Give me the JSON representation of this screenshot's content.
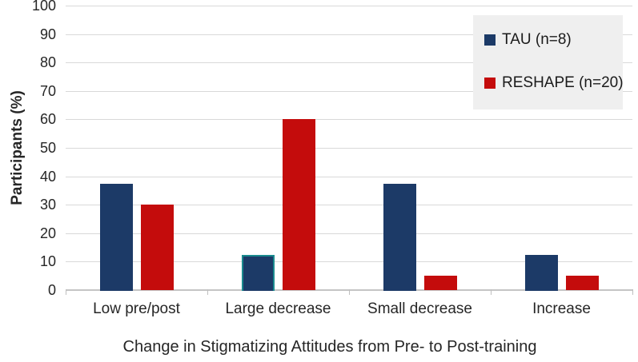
{
  "chart_data": {
    "type": "bar",
    "categories": [
      "Low pre/post",
      "Large decrease",
      "Small decrease",
      "Increase"
    ],
    "series": [
      {
        "name": "TAU (n=8)",
        "color": "#1C3A67",
        "values": [
          37.5,
          12.5,
          37.5,
          12.5
        ]
      },
      {
        "name": "RESHAPE (n=20)",
        "color": "#C40C0C",
        "values": [
          30,
          60,
          5,
          5
        ]
      }
    ],
    "xlabel": "Change in Stigmatizing Attitudes from Pre- to Post-training",
    "ylabel": "Participants (%)",
    "ylim": [
      0,
      100
    ],
    "yticks": [
      0,
      10,
      20,
      30,
      40,
      50,
      60,
      70,
      80,
      90,
      100
    ],
    "grid": true,
    "legend_position": "top-right",
    "legend_background": "#EFEFEF",
    "gridline_color": "#D9D9D9",
    "axis_line_color": "#C4C4C4",
    "text_color": "#262626",
    "highlighted_bar": {
      "series_index": 0,
      "category_index": 1,
      "outline_color": "#1A8A8E"
    }
  }
}
